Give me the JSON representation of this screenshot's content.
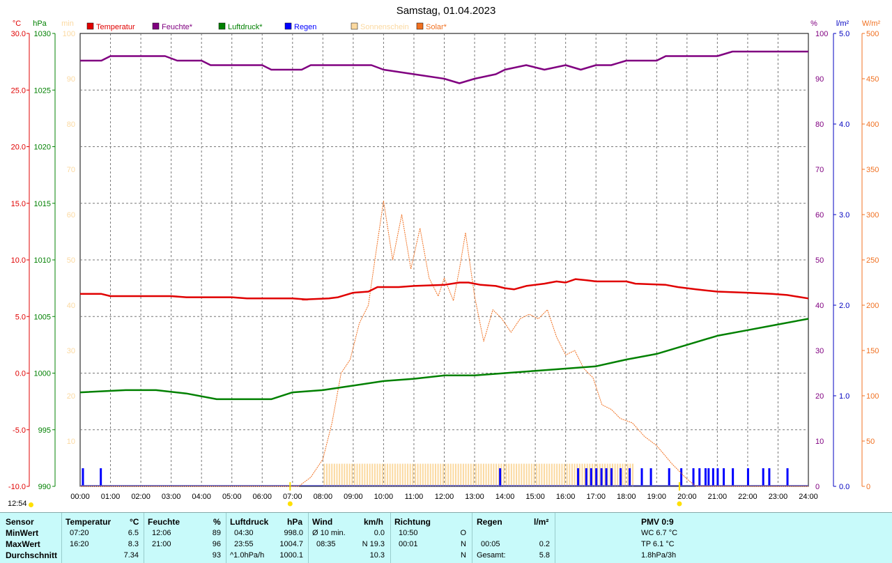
{
  "chart_data": {
    "type": "line",
    "title": "Samstag, 01.04.2023",
    "x": {
      "ticks": [
        "00:00",
        "01:00",
        "02:00",
        "03:00",
        "04:00",
        "05:00",
        "06:00",
        "07:00",
        "08:00",
        "09:00",
        "10:00",
        "11:00",
        "12:00",
        "13:00",
        "14:00",
        "15:00",
        "16:00",
        "17:00",
        "18:00",
        "19:00",
        "20:00",
        "21:00",
        "22:00",
        "23:00",
        "24:00"
      ]
    },
    "axes": {
      "temp": {
        "unit": "°C",
        "color": "#e00000",
        "range": [
          -10,
          30
        ],
        "ticks": [
          "30.0",
          "25.0",
          "20.0",
          "15.0",
          "10.0",
          "5.0",
          "0.0",
          "-5.0",
          "-10.0"
        ]
      },
      "pressure": {
        "unit": "hPa",
        "color": "#008000",
        "range": [
          990,
          1030
        ],
        "ticks": [
          "1030",
          "1025",
          "1020",
          "1015",
          "1010",
          "1005",
          "1000",
          "995",
          "990"
        ]
      },
      "sun_min": {
        "unit": "min",
        "color": "#fbd9a0",
        "range": [
          0,
          100
        ],
        "ticks": [
          "100",
          "90",
          "80",
          "70",
          "60",
          "50",
          "40",
          "30",
          "20",
          "10"
        ]
      },
      "humidity": {
        "unit": "%",
        "color": "#800080",
        "range": [
          0,
          100
        ],
        "ticks": [
          "100",
          "90",
          "80",
          "70",
          "60",
          "50",
          "40",
          "30",
          "20",
          "10",
          "0"
        ]
      },
      "rain": {
        "unit": "l/m²",
        "color": "#0000c0",
        "range": [
          0,
          5
        ],
        "ticks": [
          "5.0",
          "4.0",
          "3.0",
          "2.0",
          "1.0",
          "0.0"
        ]
      },
      "solar": {
        "unit": "W/m²",
        "color": "#f07020",
        "range": [
          0,
          500
        ],
        "ticks": [
          "500",
          "450",
          "400",
          "350",
          "300",
          "250",
          "200",
          "150",
          "100",
          "50",
          "0"
        ]
      }
    },
    "legend": [
      {
        "name": "Temperatur",
        "color": "#e00000"
      },
      {
        "name": "Feuchte*",
        "color": "#800080"
      },
      {
        "name": "Luftdruck*",
        "color": "#008000"
      },
      {
        "name": "Regen",
        "color": "#0000ff"
      },
      {
        "name": "Sonnenschein",
        "color": "#fbd9a0"
      },
      {
        "name": "Solar*",
        "color": "#f07020"
      }
    ],
    "series": {
      "temperature": [
        [
          0,
          7.0
        ],
        [
          0.7,
          7.0
        ],
        [
          1,
          6.8
        ],
        [
          3,
          6.8
        ],
        [
          3.5,
          6.7
        ],
        [
          5,
          6.7
        ],
        [
          5.5,
          6.6
        ],
        [
          7,
          6.6
        ],
        [
          7.5,
          6.5
        ],
        [
          7.33,
          6.5
        ],
        [
          8.2,
          6.6
        ],
        [
          8.5,
          6.7
        ],
        [
          9,
          7.1
        ],
        [
          9.5,
          7.2
        ],
        [
          9.8,
          7.6
        ],
        [
          10.5,
          7.6
        ],
        [
          11,
          7.7
        ],
        [
          12,
          7.8
        ],
        [
          12.5,
          8.0
        ],
        [
          12.8,
          8.0
        ],
        [
          13.2,
          7.8
        ],
        [
          13.7,
          7.7
        ],
        [
          14,
          7.5
        ],
        [
          14.3,
          7.4
        ],
        [
          14.7,
          7.7
        ],
        [
          15.3,
          7.9
        ],
        [
          15.7,
          8.1
        ],
        [
          16,
          8.0
        ],
        [
          16.33,
          8.3
        ],
        [
          16.7,
          8.2
        ],
        [
          17,
          8.1
        ],
        [
          18,
          8.1
        ],
        [
          18.3,
          7.9
        ],
        [
          19.3,
          7.8
        ],
        [
          19.7,
          7.6
        ],
        [
          20.3,
          7.4
        ],
        [
          21,
          7.2
        ],
        [
          22,
          7.1
        ],
        [
          22.8,
          7.0
        ],
        [
          23.3,
          6.9
        ],
        [
          24,
          6.6
        ]
      ],
      "humidity": [
        [
          0,
          94
        ],
        [
          0.7,
          94
        ],
        [
          1,
          95
        ],
        [
          1.5,
          95
        ],
        [
          2.8,
          95
        ],
        [
          3.2,
          94
        ],
        [
          4,
          94
        ],
        [
          4.3,
          93
        ],
        [
          6,
          93
        ],
        [
          6.3,
          92
        ],
        [
          6.8,
          92
        ],
        [
          7.3,
          92
        ],
        [
          7.6,
          93
        ],
        [
          8,
          93
        ],
        [
          9,
          93
        ],
        [
          9.6,
          93
        ],
        [
          10,
          92
        ],
        [
          11,
          91
        ],
        [
          12,
          90
        ],
        [
          12.5,
          89
        ],
        [
          13,
          90
        ],
        [
          13.7,
          91
        ],
        [
          14,
          92
        ],
        [
          14.7,
          93
        ],
        [
          15.3,
          92
        ],
        [
          16,
          93
        ],
        [
          16.5,
          92
        ],
        [
          17,
          93
        ],
        [
          17.5,
          93
        ],
        [
          18,
          94
        ],
        [
          19,
          94
        ],
        [
          19.3,
          95
        ],
        [
          21,
          95
        ],
        [
          21.5,
          96
        ],
        [
          24,
          96
        ]
      ],
      "pressure": [
        [
          0,
          998.3
        ],
        [
          1.5,
          998.5
        ],
        [
          2.5,
          998.5
        ],
        [
          3.5,
          998.2
        ],
        [
          4.5,
          997.7
        ],
        [
          5.5,
          997.7
        ],
        [
          6.3,
          997.7
        ],
        [
          7,
          998.3
        ],
        [
          8,
          998.5
        ],
        [
          9,
          998.9
        ],
        [
          10,
          999.3
        ],
        [
          11,
          999.5
        ],
        [
          12,
          999.8
        ],
        [
          13,
          999.8
        ],
        [
          14,
          1000.0
        ],
        [
          15,
          1000.2
        ],
        [
          16,
          1000.4
        ],
        [
          17,
          1000.6
        ],
        [
          18,
          1001.2
        ],
        [
          19,
          1001.7
        ],
        [
          20,
          1002.5
        ],
        [
          21,
          1003.3
        ],
        [
          22,
          1003.8
        ],
        [
          23,
          1004.3
        ],
        [
          24,
          1004.8
        ]
      ],
      "solar": [
        [
          0,
          0
        ],
        [
          7.2,
          0
        ],
        [
          7.6,
          10
        ],
        [
          8,
          30
        ],
        [
          8.3,
          70
        ],
        [
          8.6,
          125
        ],
        [
          8.9,
          140
        ],
        [
          9.2,
          180
        ],
        [
          9.5,
          200
        ],
        [
          9.8,
          270
        ],
        [
          10,
          315
        ],
        [
          10.3,
          250
        ],
        [
          10.6,
          300
        ],
        [
          10.9,
          240
        ],
        [
          11.2,
          285
        ],
        [
          11.5,
          230
        ],
        [
          11.8,
          210
        ],
        [
          12,
          230
        ],
        [
          12.3,
          205
        ],
        [
          12.5,
          240
        ],
        [
          12.7,
          280
        ],
        [
          13,
          210
        ],
        [
          13.3,
          160
        ],
        [
          13.6,
          195
        ],
        [
          13.9,
          185
        ],
        [
          14.2,
          170
        ],
        [
          14.5,
          185
        ],
        [
          14.8,
          190
        ],
        [
          15.1,
          185
        ],
        [
          15.4,
          195
        ],
        [
          15.7,
          165
        ],
        [
          16,
          145
        ],
        [
          16.3,
          150
        ],
        [
          16.6,
          130
        ],
        [
          16.9,
          120
        ],
        [
          17.2,
          90
        ],
        [
          17.5,
          85
        ],
        [
          17.8,
          75
        ],
        [
          18.2,
          70
        ],
        [
          18.6,
          55
        ],
        [
          19,
          45
        ],
        [
          19.5,
          25
        ],
        [
          20,
          8
        ],
        [
          20.3,
          0
        ],
        [
          24,
          0
        ]
      ],
      "rain_hours": [
        0.08,
        0.67,
        13.83,
        16.4,
        16.67,
        16.83,
        17.0,
        17.17,
        17.33,
        17.5,
        17.8,
        18.1,
        18.5,
        18.8,
        19.4,
        19.8,
        20.2,
        20.4,
        20.6,
        20.7,
        20.85,
        21.0,
        21.2,
        21.5,
        22.0,
        22.5,
        22.7,
        23.3
      ],
      "sunshine_range": [
        8.0,
        18.2
      ],
      "sunshine_min": 5
    }
  },
  "now_label": "12:54",
  "stats": {
    "sensor": {
      "header": "Sensor",
      "rows": [
        "MinWert",
        "MaxWert",
        "Durchschnitt"
      ]
    },
    "temp": {
      "header": "Temperatur",
      "unit": "°C",
      "min_time": "07:20",
      "min_val": "6.5",
      "max_time": "16:20",
      "max_val": "8.3",
      "avg": "7.34"
    },
    "hum": {
      "header": "Feuchte",
      "unit": "%",
      "min_time": "12:06",
      "min_val": "89",
      "max_time": "21:00",
      "max_val": "96",
      "avg": "93"
    },
    "press": {
      "header": "Luftdruck",
      "unit": "hPa",
      "min_time": "04:30",
      "min_val": "998.0",
      "max_time": "23:55",
      "max_val": "1004.7",
      "avg_label": "^1.0hPa/h",
      "avg": "1000.1"
    },
    "wind": {
      "header": "Wind",
      "unit": "km/h",
      "min_time": "Ø 10 min.",
      "min_val": "0.0",
      "max_time": "08:35",
      "max_val": "N 19.3",
      "avg": "10.3"
    },
    "dir": {
      "header": "Richtung",
      "min_time": "10:50",
      "min_val": "O",
      "max_time": "00:01",
      "max_val": "N",
      "avg": "N"
    },
    "rain": {
      "header": "Regen",
      "unit": "l/m²",
      "max_time": "00:05",
      "max_val": "0.2",
      "total_label": "Gesamt:",
      "total": "5.8"
    },
    "pmv": {
      "header": "PMV 0:9",
      "l1": "WC 6.7 °C",
      "l2": "TP 6.1 °C",
      "l3": "1.8hPa/3h"
    }
  }
}
